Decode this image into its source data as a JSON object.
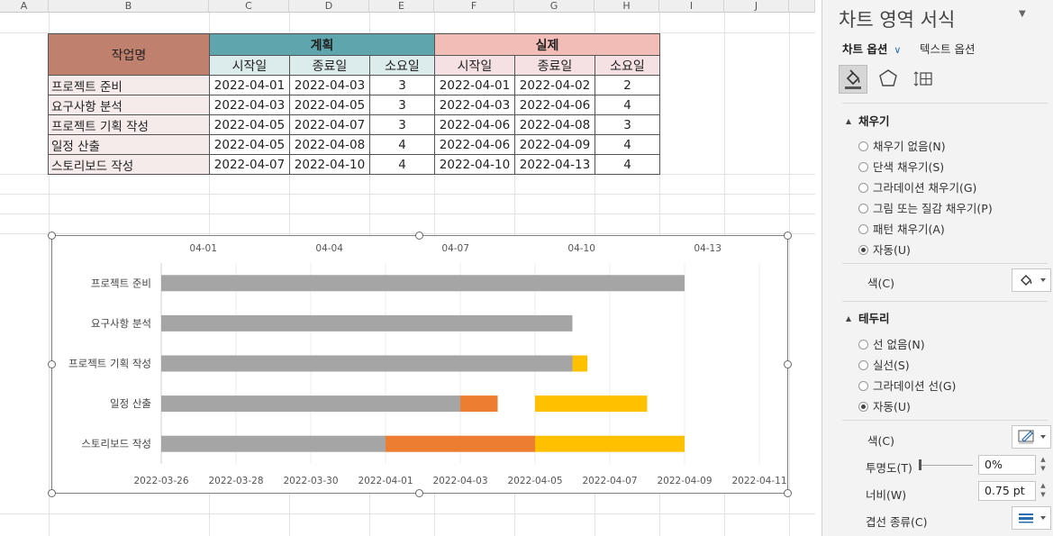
{
  "columns": [
    "A",
    "B",
    "C",
    "D",
    "E",
    "F",
    "G",
    "H",
    "I",
    "J"
  ],
  "table": {
    "task_header": "작업명",
    "plan_header": "계획",
    "actual_header": "실제",
    "sub_headers": [
      "시작일",
      "종료일",
      "소요일",
      "시작일",
      "종료일",
      "소요일"
    ],
    "rows": [
      {
        "name": "프로젝트 준비",
        "plan_start": "2022-04-01",
        "plan_end": "2022-04-03",
        "plan_days": "3",
        "act_start": "2022-04-01",
        "act_end": "2022-04-02",
        "act_days": "2"
      },
      {
        "name": "요구사항 분석",
        "plan_start": "2022-04-03",
        "plan_end": "2022-04-05",
        "plan_days": "3",
        "act_start": "2022-04-03",
        "act_end": "2022-04-06",
        "act_days": "4"
      },
      {
        "name": "프로젝트 기획 작성",
        "plan_start": "2022-04-05",
        "plan_end": "2022-04-07",
        "plan_days": "3",
        "act_start": "2022-04-06",
        "act_end": "2022-04-08",
        "act_days": "3"
      },
      {
        "name": "일정 산출",
        "plan_start": "2022-04-05",
        "plan_end": "2022-04-08",
        "plan_days": "4",
        "act_start": "2022-04-06",
        "act_end": "2022-04-09",
        "act_days": "4"
      },
      {
        "name": "스토리보드 작성",
        "plan_start": "2022-04-07",
        "plan_end": "2022-04-10",
        "plan_days": "4",
        "act_start": "2022-04-10",
        "act_end": "2022-04-13",
        "act_days": "4"
      }
    ]
  },
  "chart_data": {
    "type": "bar",
    "orientation": "horizontal-stacked",
    "categories": [
      "프로젝트 준비",
      "요구사항 분석",
      "프로젝트 기획 작성",
      "일정 산출",
      "스토리보드 작성"
    ],
    "bottom_axis_ticks": [
      "2022-03-26",
      "2022-03-28",
      "2022-03-30",
      "2022-04-01",
      "2022-04-03",
      "2022-04-05",
      "2022-04-07",
      "2022-04-09",
      "2022-04-11"
    ],
    "top_axis_ticks": [
      "04-01",
      "04-04",
      "04-07",
      "04-10",
      "04-13"
    ],
    "bottom_axis_range": [
      "2022-03-26",
      "2022-04-11"
    ],
    "top_axis_range": [
      "2022-03-31",
      "2022-04-15"
    ],
    "grid": true,
    "series": [
      {
        "color": "#a5a5a5",
        "axis": "bottom",
        "segments": [
          [
            "2022-03-26",
            "2022-04-09"
          ],
          [
            "2022-03-26",
            "2022-04-06"
          ],
          [
            "2022-03-26",
            "2022-04-06"
          ],
          [
            "2022-03-26",
            "2022-04-03"
          ],
          [
            "2022-03-26",
            "2022-04-01"
          ]
        ]
      },
      {
        "color": "#ed7d31",
        "axis": "bottom",
        "segments": [
          null,
          null,
          null,
          [
            "2022-04-03",
            "2022-04-04"
          ],
          [
            "2022-04-01",
            "2022-04-05"
          ]
        ]
      },
      {
        "color": "#ffc000",
        "axis": "bottom",
        "segments": [
          null,
          null,
          [
            "2022-04-06",
            "2022-04-06.4"
          ],
          [
            "2022-04-05",
            "2022-04-08"
          ],
          [
            "2022-04-05",
            "2022-04-09"
          ]
        ]
      }
    ]
  },
  "pane": {
    "title": "차트 영역 서식",
    "tab_chart_options": "차트 옵션",
    "tab_text_options": "텍스트 옵션",
    "fill_section": "채우기",
    "fill_options": [
      "채우기 없음(N)",
      "단색 채우기(S)",
      "그라데이션 채우기(G)",
      "그림 또는 질감 채우기(P)",
      "패턴 채우기(A)",
      "자동(U)"
    ],
    "fill_selected": 5,
    "fill_color_label": "색(C)",
    "border_section": "테두리",
    "border_options": [
      "선 없음(N)",
      "실선(S)",
      "그라데이션 선(G)",
      "자동(U)"
    ],
    "border_selected": 3,
    "border_color_label": "색(C)",
    "transparency_label": "투명도(T)",
    "transparency_value": "0%",
    "width_label": "너비(W)",
    "width_value": "0.75 pt",
    "compound_label": "겹선 종류(C)"
  }
}
